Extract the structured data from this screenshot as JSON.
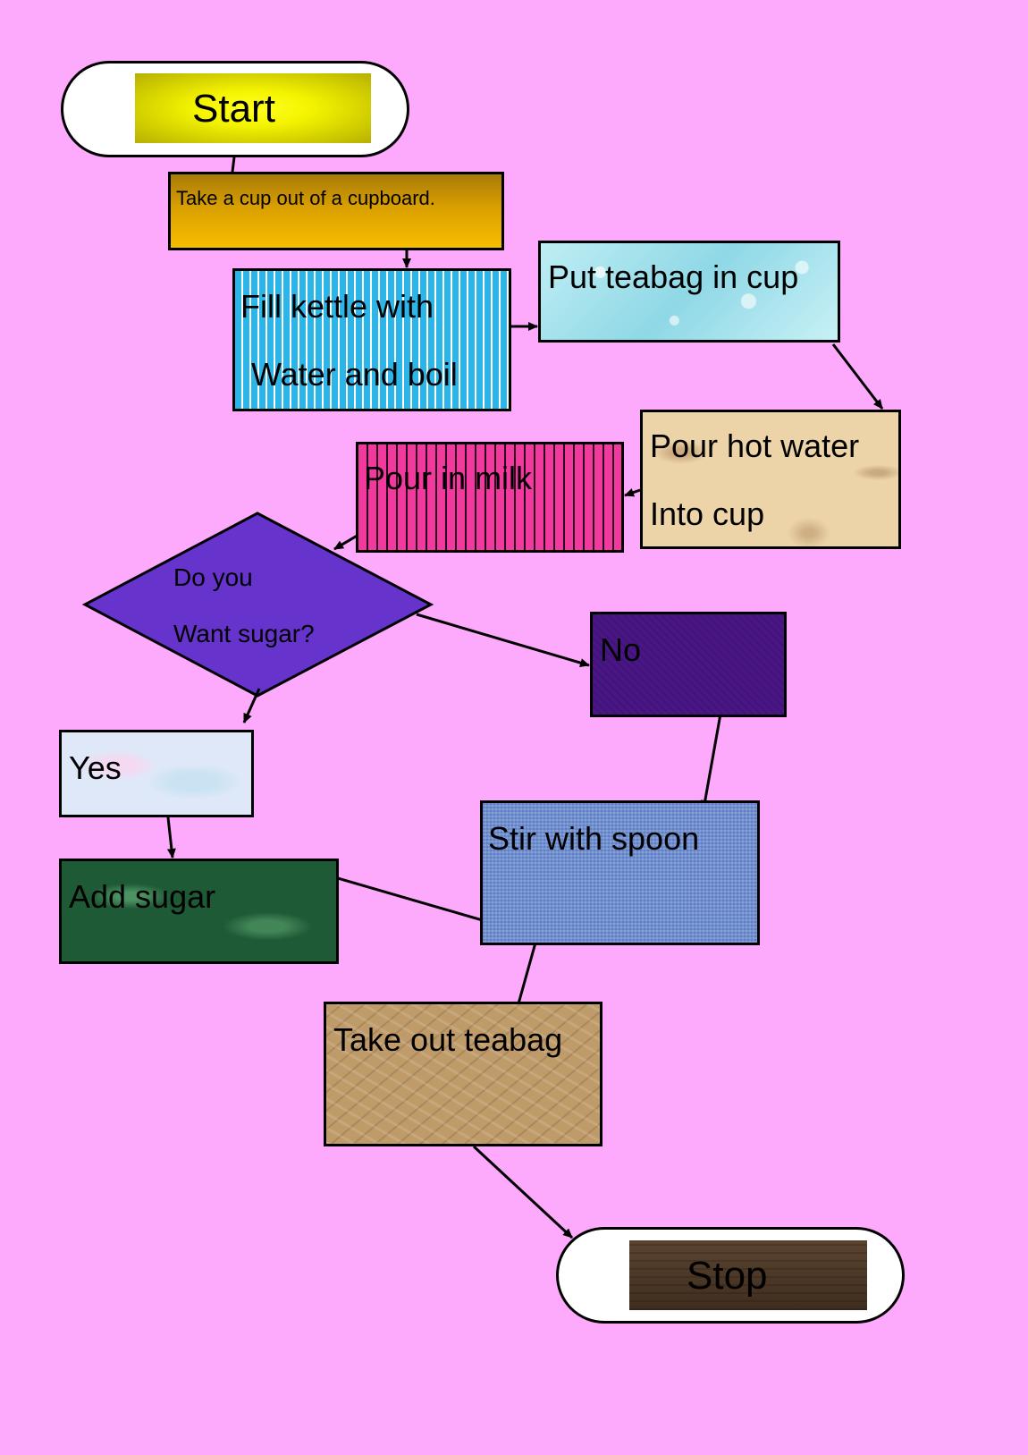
{
  "diagram": {
    "background_color": "#fdaafd",
    "nodes": {
      "start": "Start",
      "cupboard": "Take a cup out of a cupboard.",
      "kettle_line1": "Fill kettle with",
      "kettle_line2": "Water and boil",
      "teabag": "Put teabag in cup",
      "hotwater_line1": "Pour hot water",
      "hotwater_line2": "Into cup",
      "milk": "Pour in milk",
      "decision_line1": "Do you",
      "decision_line2": "Want sugar?",
      "yes": "Yes",
      "no": "No",
      "add_sugar": "Add sugar",
      "stir": "Stir with spoon",
      "take_out": "Take out teabag",
      "stop": "Stop"
    }
  }
}
